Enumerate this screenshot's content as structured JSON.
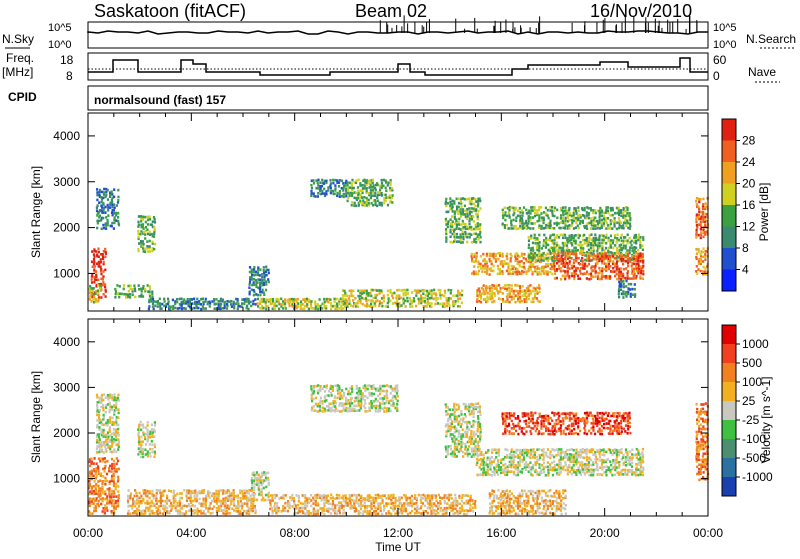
{
  "header": {
    "station": "Saskatoon (fitACF)",
    "beam": "Beam 02",
    "date": "16/Nov/2010"
  },
  "noise_panel": {
    "left_label": "N.Sky",
    "right_label": "N.Search",
    "left_ticks": [
      "10^5",
      "10^0"
    ],
    "right_ticks": [
      "10^5",
      "10^0"
    ]
  },
  "freq_panel": {
    "left_label_1": "Freq.",
    "left_label_2": "[MHz]",
    "right_label": "Nave",
    "left_ticks": [
      "18",
      "8"
    ],
    "right_ticks": [
      "60",
      "0"
    ]
  },
  "cpid": {
    "label": "CPID",
    "value": "normalsound (fast) 157"
  },
  "chart_data": [
    {
      "type": "heatmap",
      "quantity": "Power",
      "ylabel": "Slant Range [km]",
      "xlabel": "Time UT",
      "x_ticks": [
        "00:00",
        "04:00",
        "08:00",
        "12:00",
        "16:00",
        "20:00",
        "00:00"
      ],
      "x_range_hours": [
        0,
        24
      ],
      "y_ticks": [
        1000,
        2000,
        3000,
        4000
      ],
      "ylim": [
        180,
        4500
      ],
      "colorbar": {
        "label": "Power [dB]",
        "ticks": [
          "4",
          "8",
          "12",
          "16",
          "20",
          "24",
          "28"
        ],
        "colors": [
          "#0a20ff",
          "#2050d0",
          "#3a8a70",
          "#3aa040",
          "#d0d020",
          "#f0a020",
          "#f06020",
          "#e02010"
        ]
      },
      "echo_regions": [
        {
          "t0": 0.1,
          "t1": 0.7,
          "r0": 500,
          "r1": 1600,
          "level": 7
        },
        {
          "t0": 0.0,
          "t1": 0.5,
          "r0": 400,
          "r1": 800,
          "level": 4
        },
        {
          "t0": 0.3,
          "t1": 1.2,
          "r0": 2000,
          "r1": 2900,
          "level": 2
        },
        {
          "t0": 1.0,
          "t1": 2.5,
          "r0": 500,
          "r1": 800,
          "level": 3
        },
        {
          "t0": 1.9,
          "t1": 2.6,
          "r0": 1500,
          "r1": 2300,
          "level": 3
        },
        {
          "t0": 2.3,
          "t1": 6.5,
          "r0": 250,
          "r1": 500,
          "level": 2
        },
        {
          "t0": 6.2,
          "t1": 7.0,
          "r0": 550,
          "r1": 1200,
          "level": 2
        },
        {
          "t0": 6.5,
          "t1": 10.0,
          "r0": 250,
          "r1": 500,
          "level": 4
        },
        {
          "t0": 8.6,
          "t1": 10.0,
          "r0": 2700,
          "r1": 3100,
          "level": 2
        },
        {
          "t0": 10.0,
          "t1": 11.8,
          "r0": 2500,
          "r1": 3100,
          "level": 3
        },
        {
          "t0": 9.8,
          "t1": 14.5,
          "r0": 300,
          "r1": 700,
          "level": 4
        },
        {
          "t0": 13.8,
          "t1": 15.2,
          "r0": 1700,
          "r1": 2700,
          "level": 3
        },
        {
          "t0": 14.8,
          "t1": 18.0,
          "r0": 1000,
          "r1": 1500,
          "level": 5
        },
        {
          "t0": 15.0,
          "t1": 17.5,
          "r0": 400,
          "r1": 800,
          "level": 5
        },
        {
          "t0": 16.0,
          "t1": 21.0,
          "r0": 2000,
          "r1": 2500,
          "level": 3
        },
        {
          "t0": 17.0,
          "t1": 21.5,
          "r0": 1300,
          "r1": 1900,
          "level": 3
        },
        {
          "t0": 18.0,
          "t1": 21.5,
          "r0": 900,
          "r1": 1500,
          "level": 6
        },
        {
          "t0": 20.5,
          "t1": 21.2,
          "r0": 500,
          "r1": 900,
          "level": 2
        },
        {
          "t0": 23.5,
          "t1": 24.0,
          "r0": 1800,
          "r1": 2700,
          "level": 6
        },
        {
          "t0": 23.5,
          "t1": 24.0,
          "r0": 1000,
          "r1": 1600,
          "level": 5
        }
      ]
    },
    {
      "type": "heatmap",
      "quantity": "Velocity",
      "ylabel": "Slant Range [km]",
      "xlabel": "Time UT",
      "x_ticks": [
        "00:00",
        "04:00",
        "08:00",
        "12:00",
        "16:00",
        "20:00",
        "00:00"
      ],
      "x_range_hours": [
        0,
        24
      ],
      "y_ticks": [
        1000,
        2000,
        3000,
        4000
      ],
      "ylim": [
        180,
        4500
      ],
      "colorbar": {
        "label": "Velocity [m s^-1]",
        "ticks": [
          "1000",
          "500",
          "100",
          "25",
          "-25",
          "-100",
          "-500",
          "-1000"
        ],
        "colors": [
          "#1a3fb0",
          "#2a70a0",
          "#4a9070",
          "#40c040",
          "#c8c8c0",
          "#f0b020",
          "#f08020",
          "#f04020",
          "#e00000"
        ]
      },
      "echo_regions": [
        {
          "t0": 0.0,
          "t1": 1.2,
          "r0": 250,
          "r1": 1500,
          "level": 6
        },
        {
          "t0": 0.3,
          "t1": 1.2,
          "r0": 1600,
          "r1": 2900,
          "level": 4
        },
        {
          "t0": 1.5,
          "t1": 6.5,
          "r0": 250,
          "r1": 800,
          "level": 5
        },
        {
          "t0": 1.9,
          "t1": 2.6,
          "r0": 1500,
          "r1": 2300,
          "level": 4
        },
        {
          "t0": 6.3,
          "t1": 7.0,
          "r0": 550,
          "r1": 1200,
          "level": 4
        },
        {
          "t0": 8.6,
          "t1": 12.0,
          "r0": 2500,
          "r1": 3100,
          "level": 4
        },
        {
          "t0": 7.0,
          "t1": 15.0,
          "r0": 250,
          "r1": 700,
          "level": 5
        },
        {
          "t0": 13.8,
          "t1": 15.2,
          "r0": 1500,
          "r1": 2700,
          "level": 4
        },
        {
          "t0": 15.0,
          "t1": 21.5,
          "r0": 1100,
          "r1": 1700,
          "level": 4
        },
        {
          "t0": 16.0,
          "t1": 21.0,
          "r0": 2000,
          "r1": 2500,
          "level": 7
        },
        {
          "t0": 15.5,
          "t1": 18.5,
          "r0": 250,
          "r1": 800,
          "level": 5
        },
        {
          "t0": 23.5,
          "t1": 24.0,
          "r0": 1000,
          "r1": 2700,
          "level": 6
        }
      ]
    }
  ]
}
